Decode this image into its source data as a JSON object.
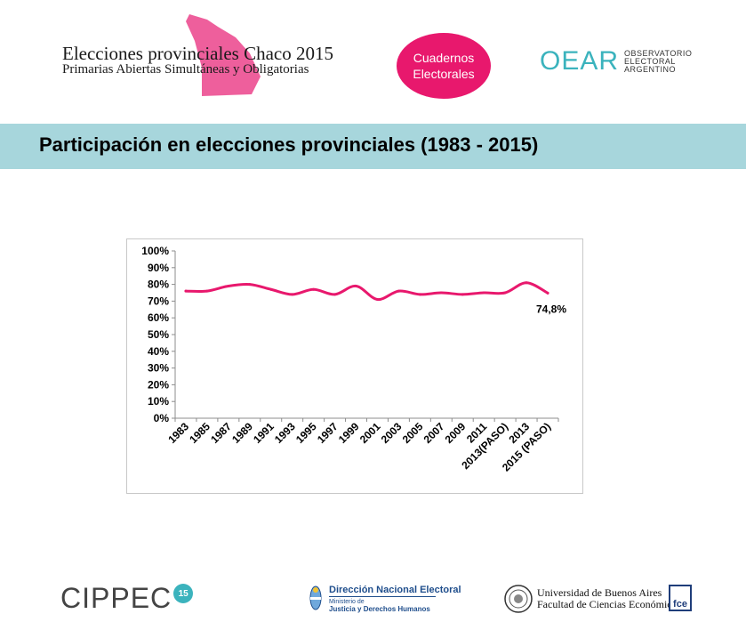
{
  "header": {
    "title": "Elecciones provinciales Chaco 2015",
    "subtitle": "Primarias Abiertas Simultáneas y Obligatorias",
    "badge_line1": "Cuadernos",
    "badge_line2": "Electorales",
    "oear_logo": "OEAR",
    "oear_sub1": "OBSERVATORIO",
    "oear_sub2": "ELECTORAL",
    "oear_sub3": "ARGENTINO",
    "map_color": "#ee5f9c"
  },
  "banner": {
    "title": "Participación en elecciones provinciales (1983 - 2015)",
    "color": "#a7d6dc"
  },
  "chart_data": {
    "type": "line",
    "title": "Participación en elecciones provinciales (1983 - 2015)",
    "categories": [
      "1983",
      "1985",
      "1987",
      "1989",
      "1991",
      "1993",
      "1995",
      "1997",
      "1999",
      "2001",
      "2003",
      "2005",
      "2007",
      "2009",
      "2011",
      "2013(PASO)",
      "2013",
      "2015 (PASO)"
    ],
    "series": [
      {
        "name": "Participación",
        "color": "#e8186d",
        "values": [
          76,
          76,
          79,
          80,
          77,
          74,
          77,
          74,
          79,
          71,
          76,
          74,
          75,
          74,
          75,
          75,
          81,
          74.8
        ]
      }
    ],
    "ylim": [
      0,
      100
    ],
    "yticks": [
      "0%",
      "10%",
      "20%",
      "30%",
      "40%",
      "50%",
      "60%",
      "70%",
      "80%",
      "90%",
      "100%"
    ],
    "annotations": [
      {
        "category": "2015 (PASO)",
        "text": "74,8%"
      }
    ],
    "grid": false,
    "legend": "none"
  },
  "footer": {
    "cippec": "CIPPEC",
    "cippec_badge": "15",
    "dne_title": "Dirección Nacional Electoral",
    "dne_line1": "Ministerio de",
    "dne_line2": "Justicia y Derechos Humanos",
    "uba_line1": "Universidad de Buenos Aires",
    "uba_line2": "Facultad de Ciencias Económicas",
    "fce": "fce"
  }
}
